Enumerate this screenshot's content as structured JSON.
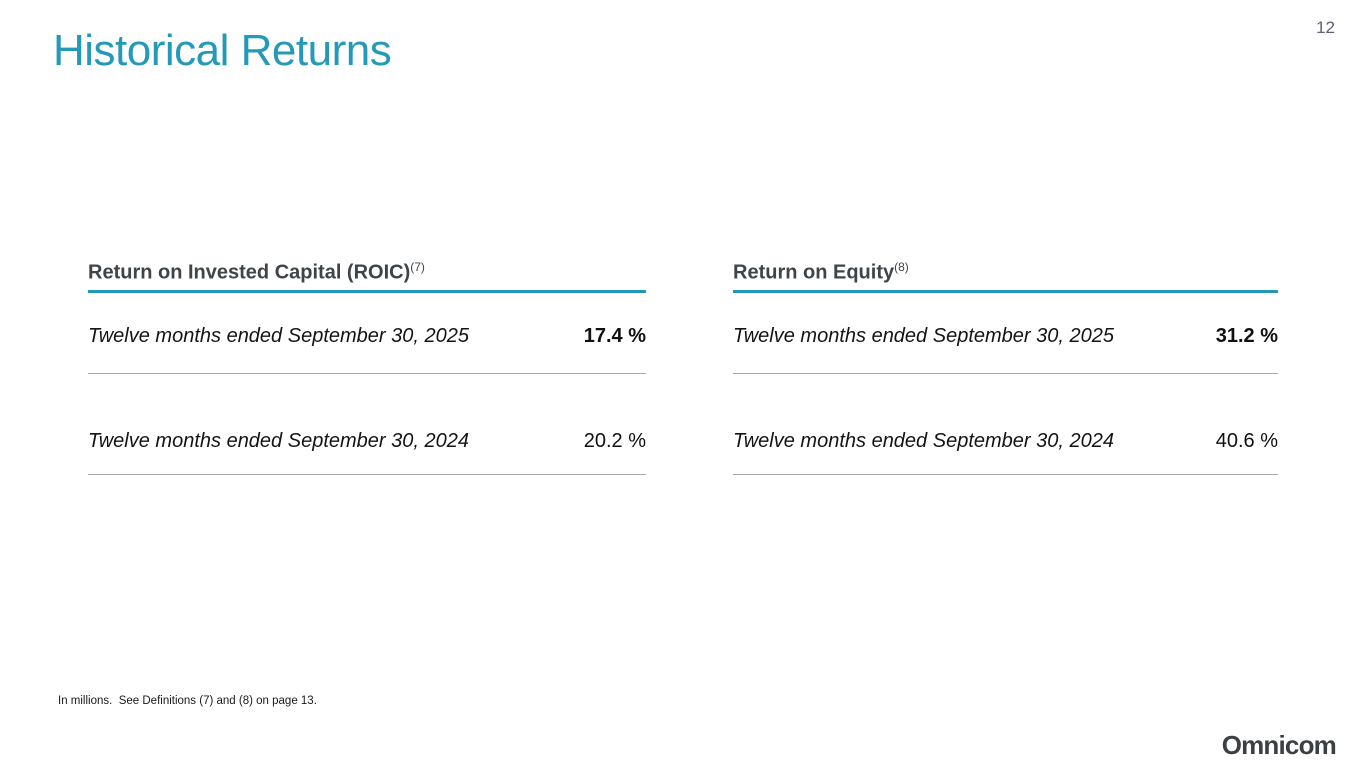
{
  "page": {
    "number": "12",
    "title": "Historical Returns",
    "footnote": "In millions.  See Definitions (7) and (8) on page 13.",
    "logo_text": "Omnicom"
  },
  "colors": {
    "accent_teal": "#2499b8",
    "header_text": "#3f4448",
    "body_text": "#141414",
    "row_separator": "#a8a8a8",
    "page_number": "#5b6170",
    "logo": "#3b4045"
  },
  "tables": [
    {
      "title": "Return on Invested Capital (ROIC)",
      "title_superscript": "(7)",
      "rows": [
        {
          "label": "Twelve months ended September 30, 2025",
          "value": "17.4 %",
          "bold": true
        },
        {
          "label": "Twelve months ended September 30, 2024",
          "value": "20.2 %",
          "bold": false
        }
      ]
    },
    {
      "title": "Return on Equity",
      "title_superscript": "(8)",
      "rows": [
        {
          "label": "Twelve months ended September 30, 2025",
          "value": "31.2 %",
          "bold": true
        },
        {
          "label": "Twelve months ended September 30, 2024",
          "value": "40.6 %",
          "bold": false
        }
      ]
    }
  ]
}
